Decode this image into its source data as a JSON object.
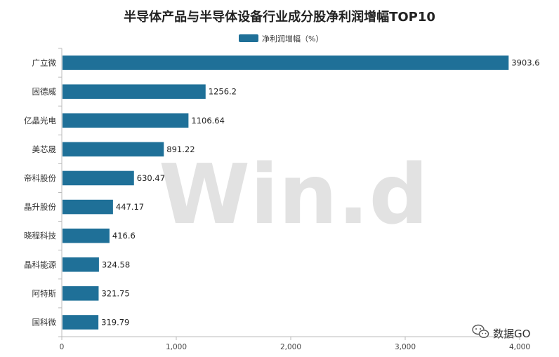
{
  "chart_data": {
    "type": "bar",
    "orientation": "horizontal",
    "title": "半导体产品与半导体设备行业成分股净利润增幅TOP10",
    "legend": {
      "label": "净利润增幅（%）",
      "placement": "top-center"
    },
    "categories": [
      "广立微",
      "固德威",
      "亿晶光电",
      "美芯晟",
      "帝科股份",
      "晶升股份",
      "晓程科技",
      "晶科能源",
      "阿特斯",
      "国科微"
    ],
    "values": [
      3903.6,
      1256.2,
      1106.64,
      891.22,
      630.47,
      447.17,
      416.6,
      324.58,
      321.75,
      319.79
    ],
    "value_labels": [
      "3903.6",
      "1256.2",
      "1106.64",
      "891.22",
      "630.47",
      "447.17",
      "416.6",
      "324.58",
      "321.75",
      "319.79"
    ],
    "xlim": [
      0,
      4000
    ],
    "x_ticks": [
      0,
      1000,
      2000,
      3000,
      4000
    ],
    "x_tick_labels": [
      "0",
      "1,000",
      "2,000",
      "3,000",
      "4,000"
    ],
    "grid": false,
    "bar_color": "#1f7098"
  },
  "watermark": "Win.d",
  "brand": {
    "text": "数据GO",
    "icon": "wechat-icon"
  }
}
